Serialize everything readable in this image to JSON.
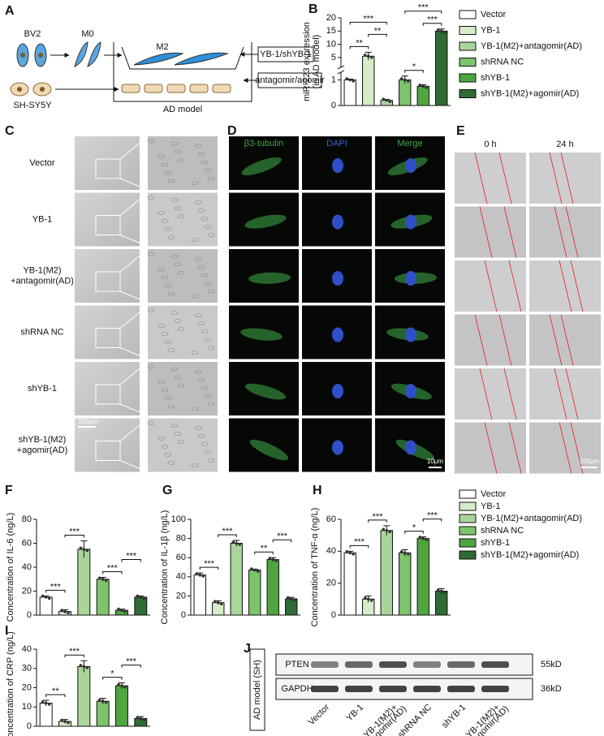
{
  "panel_labels": [
    "A",
    "B",
    "C",
    "D",
    "E",
    "F",
    "G",
    "H",
    "I",
    "J"
  ],
  "diagram": {
    "cells": [
      "BV2",
      "M0",
      "M2",
      "SH-SY5Y"
    ],
    "chamber": "AD model",
    "treatments": [
      "YB-1/shYB-1",
      "antagomir/agomir"
    ]
  },
  "groups": {
    "names": [
      "Vector",
      "YB-1",
      "YB-1(M2)+antagomir(AD)",
      "shRNA NC",
      "shYB-1",
      "shYB-1(M2)+agomir(AD)"
    ],
    "colors": [
      "#ffffff",
      "#d6ebc8",
      "#a9d59b",
      "#7dc46b",
      "#4fa540",
      "#2e6b35"
    ]
  },
  "chart_data": [
    {
      "type": "bar",
      "ylabel": [
        "miR-223 expression",
        "(in AD model)"
      ],
      "values": [
        1,
        5.5,
        0.2,
        1.0,
        0.75,
        15
      ],
      "errors": [
        0.03,
        1.5,
        0.04,
        0.15,
        0.06,
        0.8
      ],
      "ylim_lower": [
        0,
        1.3
      ],
      "yticks_lower": [
        0,
        1
      ],
      "ylim": [
        1.3,
        20
      ],
      "yticks": [
        5,
        10,
        15,
        20
      ],
      "significance": [
        {
          "pair": [
            0,
            1
          ],
          "label": "**"
        },
        {
          "pair": [
            1,
            2
          ],
          "label": "**"
        },
        {
          "pair": [
            0,
            2
          ],
          "label": "***"
        },
        {
          "pair": [
            3,
            4
          ],
          "label": "*"
        },
        {
          "pair": [
            4,
            5
          ],
          "label": "***"
        },
        {
          "pair": [
            3,
            5
          ],
          "label": "***"
        }
      ]
    },
    {
      "type": "bar",
      "ylabel": [
        "Concentration of IL-6 (ng/L)"
      ],
      "values": [
        15,
        3,
        55,
        30,
        4,
        15
      ],
      "errors": [
        1,
        1.5,
        7,
        1.5,
        1,
        1
      ],
      "ylim": [
        0,
        80
      ],
      "yticks": [
        0,
        20,
        40,
        60,
        80
      ],
      "significance": [
        {
          "pair": [
            0,
            1
          ],
          "label": "***"
        },
        {
          "pair": [
            1,
            2
          ],
          "label": "***"
        },
        {
          "pair": [
            3,
            4
          ],
          "label": "***"
        },
        {
          "pair": [
            4,
            5
          ],
          "label": "***"
        }
      ]
    },
    {
      "type": "bar",
      "ylabel": [
        "Concentration of IL-1β (ng/L)"
      ],
      "values": [
        42,
        13,
        75,
        47,
        58,
        17
      ],
      "errors": [
        2,
        2,
        3,
        1,
        2,
        1.5
      ],
      "ylim": [
        0,
        100
      ],
      "yticks": [
        0,
        20,
        40,
        60,
        80,
        100
      ],
      "significance": [
        {
          "pair": [
            0,
            1
          ],
          "label": "***"
        },
        {
          "pair": [
            1,
            2
          ],
          "label": "***"
        },
        {
          "pair": [
            3,
            4
          ],
          "label": "**"
        },
        {
          "pair": [
            4,
            5
          ],
          "label": "***"
        }
      ]
    },
    {
      "type": "bar",
      "ylabel": [
        "Concentration of TNF-α (ng/L)"
      ],
      "values": [
        39,
        10,
        53,
        39,
        48,
        15
      ],
      "errors": [
        1,
        2,
        3,
        2,
        1,
        1.5
      ],
      "ylim": [
        0,
        60
      ],
      "yticks": [
        0,
        20,
        40,
        60
      ],
      "significance": [
        {
          "pair": [
            0,
            1
          ],
          "label": "***"
        },
        {
          "pair": [
            1,
            2
          ],
          "label": "***"
        },
        {
          "pair": [
            3,
            4
          ],
          "label": "*"
        },
        {
          "pair": [
            4,
            5
          ],
          "label": "***"
        }
      ]
    },
    {
      "type": "bar",
      "ylabel": [
        "Concentration of CRP (ng/L)"
      ],
      "values": [
        12,
        2.5,
        31,
        13,
        21,
        4
      ],
      "errors": [
        1.5,
        1,
        3,
        1.5,
        1.5,
        1
      ],
      "ylim": [
        0,
        40
      ],
      "yticks": [
        0,
        10,
        20,
        30,
        40
      ],
      "significance": [
        {
          "pair": [
            0,
            1
          ],
          "label": "**"
        },
        {
          "pair": [
            1,
            2
          ],
          "label": "***"
        },
        {
          "pair": [
            3,
            4
          ],
          "label": "*"
        },
        {
          "pair": [
            4,
            5
          ],
          "label": "***"
        }
      ]
    }
  ],
  "micrographs": {
    "C": {
      "rows": [
        [
          "Vector"
        ],
        [
          "YB-1"
        ],
        [
          "YB-1(M2)",
          "+antagomir(AD)"
        ],
        [
          "shRNA NC"
        ],
        [
          "shYB-1"
        ],
        [
          "shYB-1(M2)",
          "+agomir(AD)"
        ]
      ],
      "scale": "100μm"
    },
    "D": {
      "columns": [
        "β3-tubulin",
        "DAPI",
        "Merge"
      ],
      "scale": "10μm"
    },
    "E": {
      "columns": [
        "0 h",
        "24 h"
      ],
      "scale": "100μm"
    }
  },
  "blot": {
    "ylabel": "AD model (SH)",
    "bands": [
      {
        "name": "PTEN",
        "size": "55kD"
      },
      {
        "name": "GAPDH",
        "size": "36kD"
      }
    ],
    "lanes": [
      [
        "Vector"
      ],
      [
        "YB-1"
      ],
      [
        "YB-1(M2)+",
        "antagomir(AD)"
      ],
      [
        "shRNA NC"
      ],
      [
        "shYB-1"
      ],
      [
        "shYB-1(M2)+",
        "agomir(AD)"
      ]
    ]
  }
}
